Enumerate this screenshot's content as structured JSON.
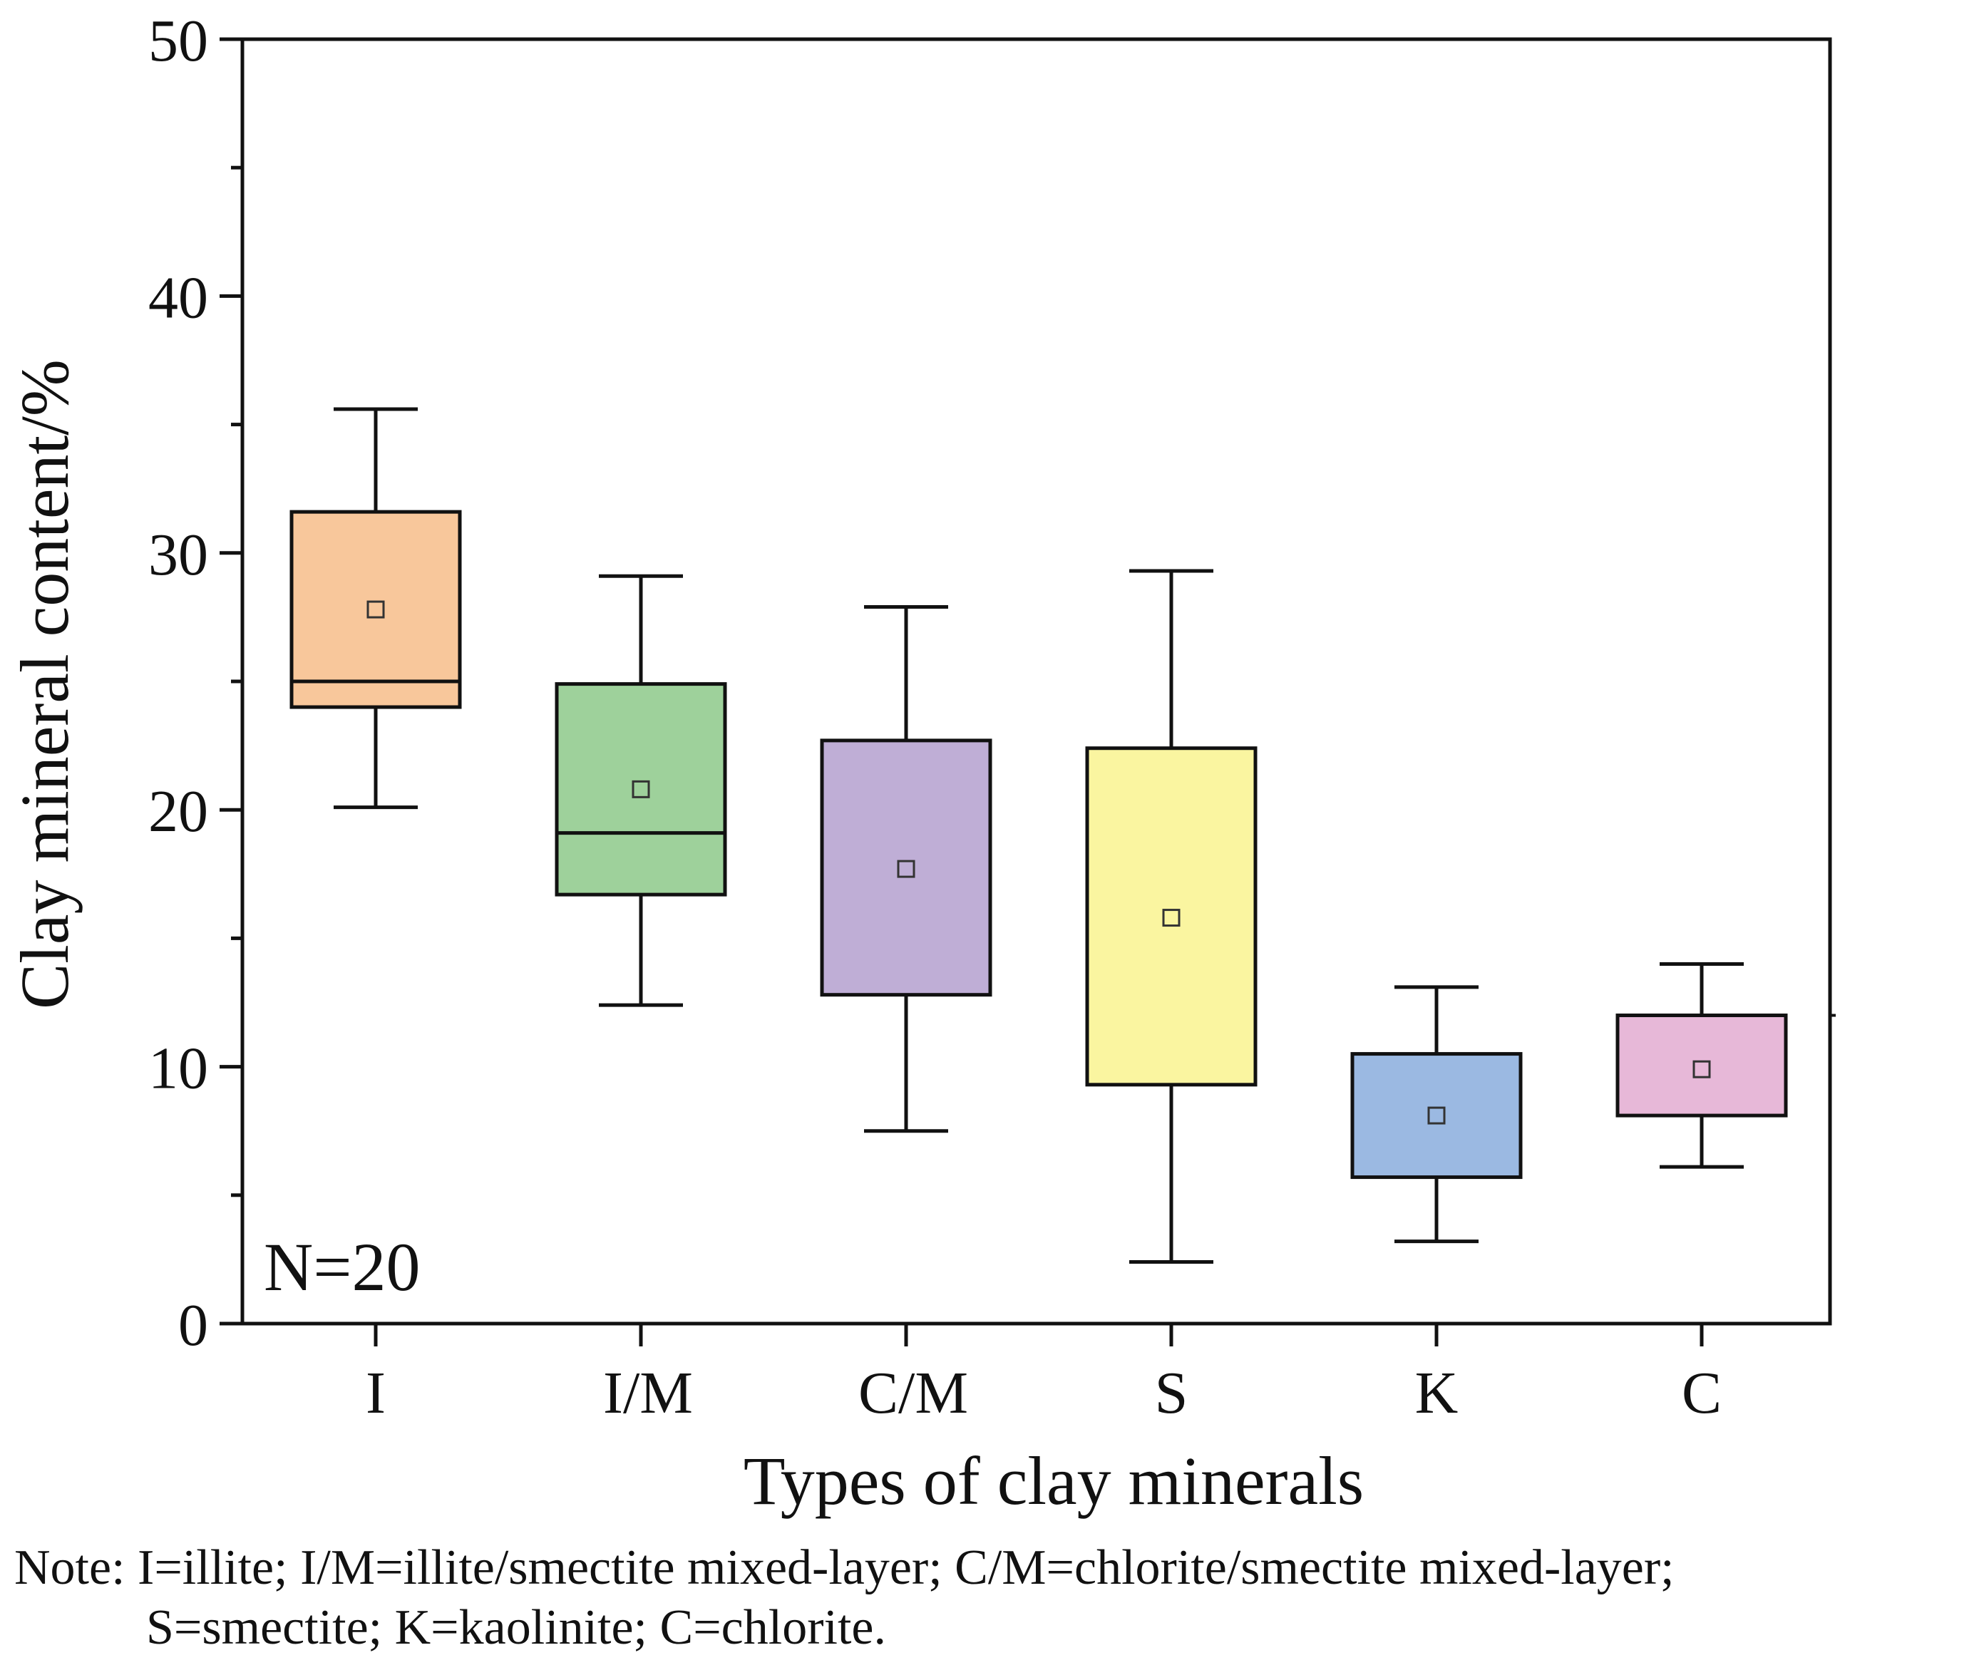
{
  "chart_data": {
    "type": "boxplot",
    "title": "",
    "xlabel": "Types of clay minerals",
    "ylabel": "Clay mineral content/%",
    "ylim": [
      0,
      50
    ],
    "yticks": [
      0,
      10,
      20,
      30,
      40,
      50
    ],
    "yticks_minor": [
      5,
      15,
      25,
      35,
      45
    ],
    "categories": [
      "I",
      "I/M",
      "C/M",
      "S",
      "K",
      "C"
    ],
    "boxes": [
      {
        "label": "I",
        "whisker_low": 20.1,
        "q1": 24.0,
        "median": 25.0,
        "q3": 31.6,
        "whisker_high": 35.6,
        "mean": 27.8,
        "color": "#F8C79B"
      },
      {
        "label": "I/M",
        "whisker_low": 12.4,
        "q1": 16.7,
        "median": 19.1,
        "q3": 24.9,
        "whisker_high": 29.1,
        "mean": 20.8,
        "color": "#9ED19B"
      },
      {
        "label": "C/M",
        "whisker_low": 7.5,
        "q1": 12.8,
        "median": null,
        "q3": 22.7,
        "whisker_high": 27.9,
        "mean": 17.7,
        "color": "#BFAED6"
      },
      {
        "label": "S",
        "whisker_low": 2.4,
        "q1": 9.3,
        "median": null,
        "q3": 22.4,
        "whisker_high": 29.3,
        "mean": 15.8,
        "color": "#FAF5A0"
      },
      {
        "label": "K",
        "whisker_low": 3.2,
        "q1": 5.7,
        "median": null,
        "q3": 10.5,
        "whisker_high": 13.1,
        "mean": 8.1,
        "color": "#9BB9E2"
      },
      {
        "label": "C",
        "whisker_low": 6.1,
        "q1": 8.1,
        "median": null,
        "q3": 12.0,
        "whisker_high": 14.0,
        "mean": 9.9,
        "color": "#E7B8D8"
      }
    ],
    "annotation": "N=20",
    "grid": false
  },
  "note": {
    "line1": "Note: I=illite; I/M=illite/smectite mixed-layer; C/M=chlorite/smectite mixed-layer;",
    "line2": "S=smectite; K=kaolinite; C=chlorite."
  }
}
